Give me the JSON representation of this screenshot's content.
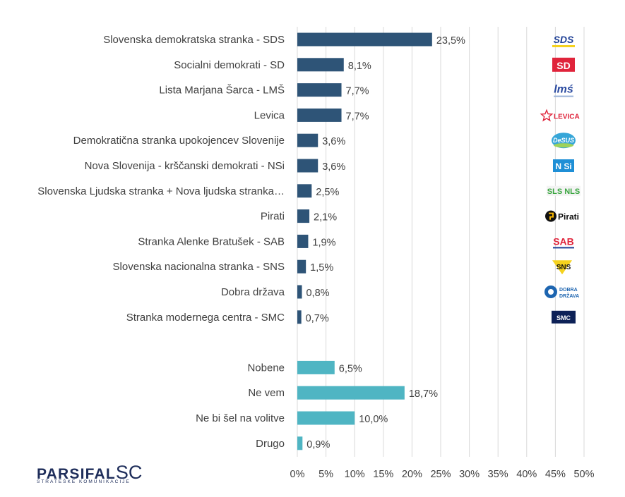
{
  "chart_data": {
    "type": "bar",
    "orientation": "horizontal",
    "x_axis": {
      "ticks": [
        "0%",
        "5%",
        "10%",
        "15%",
        "20%",
        "25%",
        "30%",
        "35%",
        "40%",
        "45%",
        "50%"
      ],
      "xlim": [
        0,
        50
      ],
      "grid": true
    },
    "colors": {
      "parties": "#2e5477",
      "other": "#4fb5c3"
    },
    "groups": [
      {
        "bars": [
          {
            "label": "Slovenska demokratska stranka - SDS",
            "value": 23.5,
            "value_label": "23,5%",
            "logo_icon": "sds-logo-icon",
            "logo_text": "SDS"
          },
          {
            "label": "Socialni demokrati - SD",
            "value": 8.1,
            "value_label": "8,1%",
            "logo_icon": "sd-logo-icon",
            "logo_text": "SD"
          },
          {
            "label": "Lista Marjana Šarca - LMŠ",
            "value": 7.7,
            "value_label": "7,7%",
            "logo_icon": "lms-logo-icon",
            "logo_text": "lmś"
          },
          {
            "label": "Levica",
            "value": 7.7,
            "value_label": "7,7%",
            "logo_icon": "levica-logo-icon",
            "logo_text": "LEVICA"
          },
          {
            "label": "Demokratična stranka upokojencev Slovenije",
            "value": 3.6,
            "value_label": "3,6%",
            "logo_icon": "desus-logo-icon",
            "logo_text": "DeSUS"
          },
          {
            "label": "Nova Slovenija - krščanski demokrati - NSi",
            "value": 3.6,
            "value_label": "3,6%",
            "logo_icon": "nsi-logo-icon",
            "logo_text": "N Si"
          },
          {
            "label": "Slovenska Ljudska stranka + Nova ljudska stranka…",
            "value": 2.5,
            "value_label": "2,5%",
            "logo_icon": "sls-nls-logo-icon",
            "logo_text": "SLS NLS"
          },
          {
            "label": "Pirati",
            "value": 2.1,
            "value_label": "2,1%",
            "logo_icon": "pirati-logo-icon",
            "logo_text": "Pirati"
          },
          {
            "label": "Stranka Alenke Bratušek - SAB",
            "value": 1.9,
            "value_label": "1,9%",
            "logo_icon": "sab-logo-icon",
            "logo_text": "SAB"
          },
          {
            "label": "Slovenska nacionalna stranka - SNS",
            "value": 1.5,
            "value_label": "1,5%",
            "logo_icon": "sns-logo-icon",
            "logo_text": "SNS"
          },
          {
            "label": "Dobra država",
            "value": 0.8,
            "value_label": "0,8%",
            "logo_icon": "dobra-drzava-logo-icon",
            "logo_text": "DOBRA DRŽAVA"
          },
          {
            "label": "Stranka modernega centra - SMC",
            "value": 0.7,
            "value_label": "0,7%",
            "logo_icon": "smc-logo-icon",
            "logo_text": "SMC"
          }
        ]
      },
      {
        "bars": [
          {
            "label": "Nobene",
            "value": 6.5,
            "value_label": "6,5%"
          },
          {
            "label": "Ne vem",
            "value": 18.7,
            "value_label": "18,7%"
          },
          {
            "label": "Ne bi šel na volitve",
            "value": 10.0,
            "value_label": "10,0%"
          },
          {
            "label": "Drugo",
            "value": 0.9,
            "value_label": "0,9%"
          }
        ]
      }
    ]
  },
  "branding": {
    "name": "PARSIFAL",
    "name_suffix": "SC",
    "tagline": "STRATEŠKE KOMUNIKACIJE"
  }
}
